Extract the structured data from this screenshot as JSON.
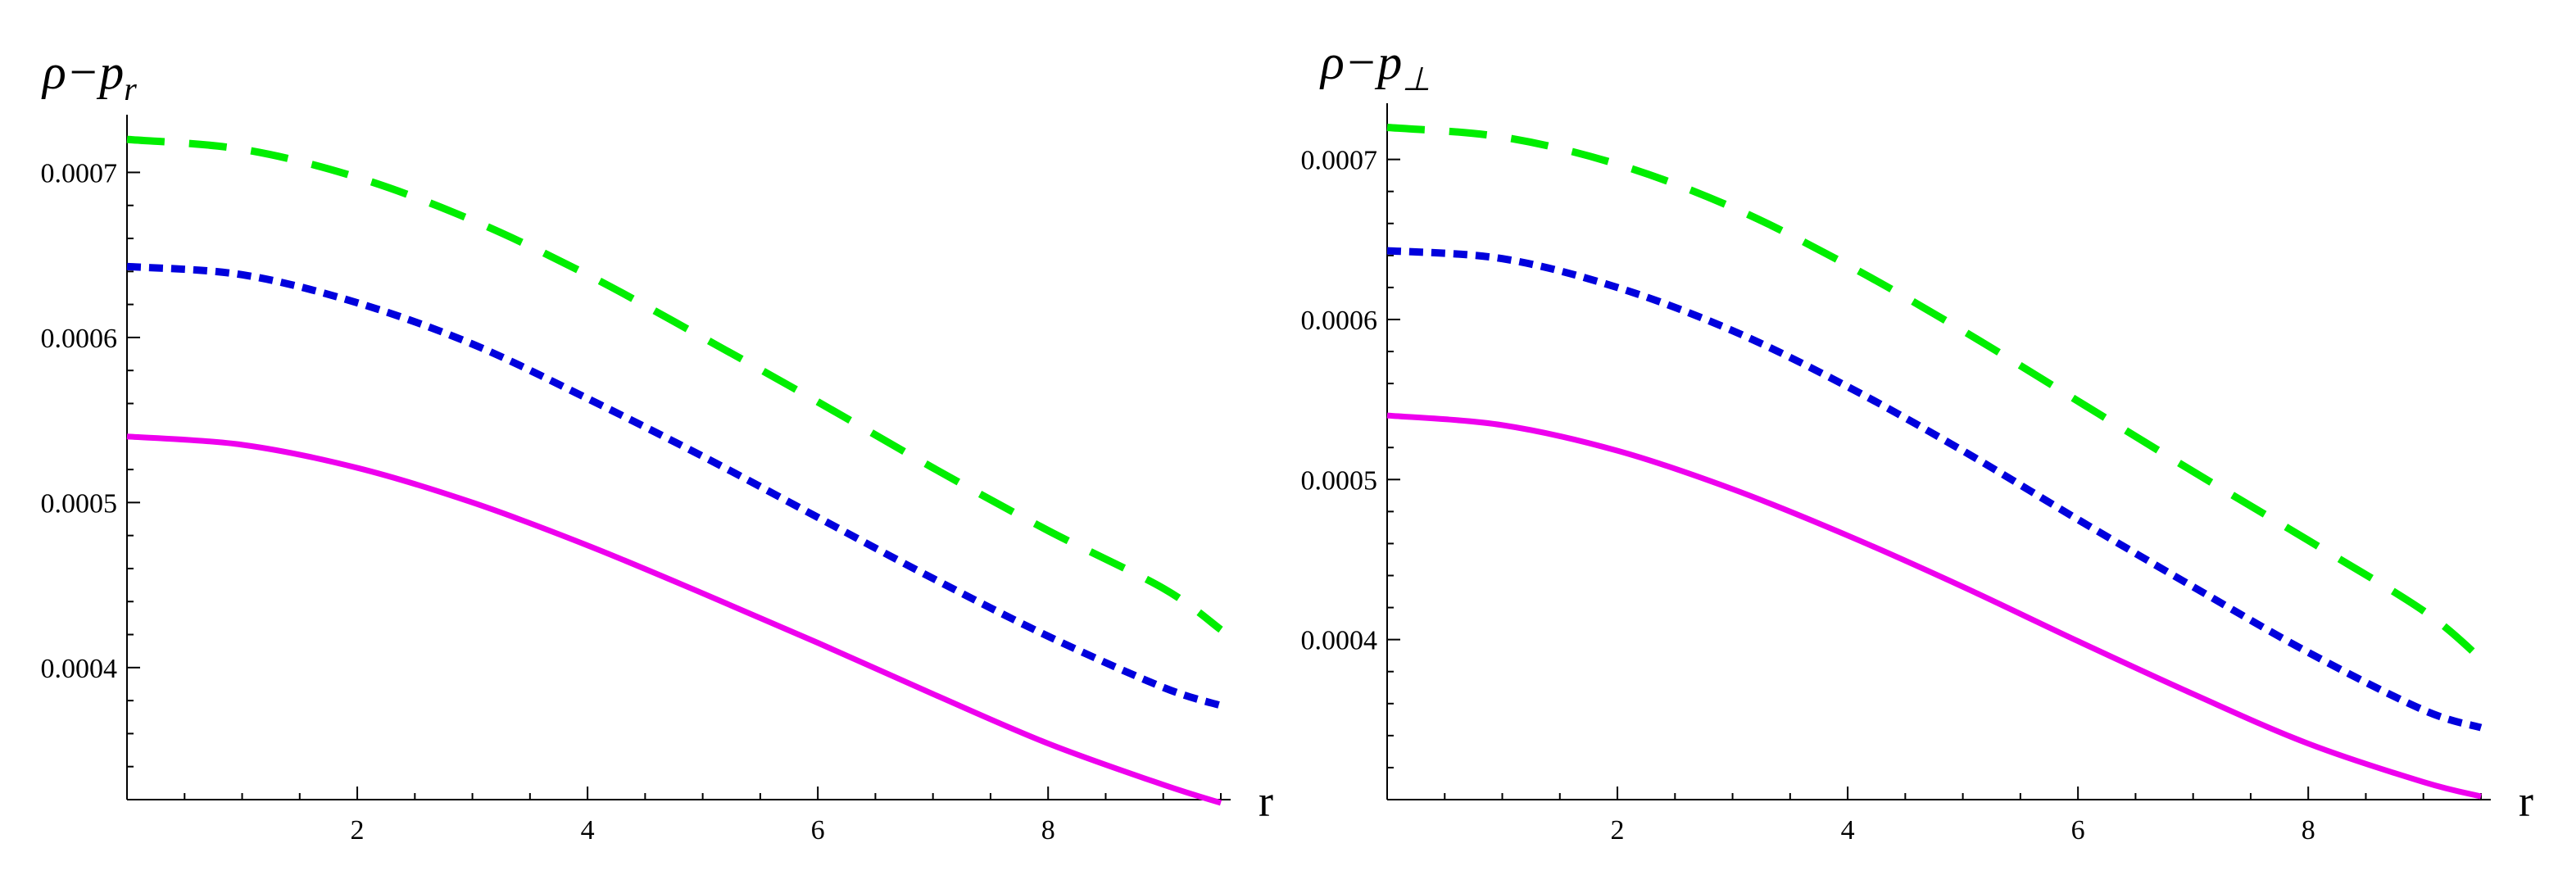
{
  "chart_data": [
    {
      "type": "line",
      "ylabel": "ρ−p",
      "ylabel_sub": "r",
      "xlabel": "r",
      "xlim": [
        0,
        9.5
      ],
      "ylim": [
        0.00032,
        0.00073
      ],
      "x_ticks": [
        2,
        4,
        6,
        8
      ],
      "x_tick_labels": [
        "2",
        "4",
        "6",
        "8"
      ],
      "y_ticks": [
        0.0004,
        0.0005,
        0.0006,
        0.0007
      ],
      "y_tick_labels": [
        "0.0004",
        "0.0005",
        "0.0006",
        "0.0007"
      ],
      "series": [
        {
          "color": "#00ee00",
          "style": "long-dashed",
          "x": [
            0,
            1,
            2,
            3,
            4,
            5,
            6,
            7,
            8,
            9,
            9.5
          ],
          "values": [
            0.00072,
            0.000714,
            0.000697,
            0.000671,
            0.000638,
            0.0006,
            0.000561,
            0.000521,
            0.000483,
            0.000448,
            0.000423
          ]
        },
        {
          "color": "#0000dd",
          "style": "short-dashed",
          "x": [
            0,
            1,
            2,
            3,
            4,
            5,
            6,
            7,
            8,
            9,
            9.5
          ],
          "values": [
            0.000643,
            0.000638,
            0.000621,
            0.000596,
            0.000563,
            0.000528,
            0.000491,
            0.000454,
            0.000419,
            0.000388,
            0.000377
          ]
        },
        {
          "color": "#ee00ee",
          "style": "solid",
          "x": [
            0,
            1,
            2,
            3,
            4,
            5,
            6,
            7,
            8,
            9,
            9.5
          ],
          "values": [
            0.00054,
            0.000535,
            0.000521,
            0.0005,
            0.000474,
            0.000445,
            0.000415,
            0.000384,
            0.000354,
            0.000329,
            0.000318
          ]
        }
      ]
    },
    {
      "type": "line",
      "ylabel": "ρ−p",
      "ylabel_sub": "⊥",
      "xlabel": "r",
      "xlim": [
        0,
        9.5
      ],
      "ylim": [
        0.0003,
        0.00073
      ],
      "x_ticks": [
        2,
        4,
        6,
        8
      ],
      "x_tick_labels": [
        "2",
        "4",
        "6",
        "8"
      ],
      "y_ticks": [
        0.0004,
        0.0005,
        0.0006,
        0.0007
      ],
      "y_tick_labels": [
        "0.0004",
        "0.0005",
        "0.0006",
        "0.0007"
      ],
      "series": [
        {
          "color": "#00ee00",
          "style": "long-dashed",
          "x": [
            0,
            1,
            2,
            3,
            4,
            5,
            6,
            7,
            8,
            9,
            9.5
          ],
          "values": [
            0.00072,
            0.000714,
            0.000697,
            0.00067,
            0.000634,
            0.000593,
            0.000549,
            0.000505,
            0.000462,
            0.000418,
            0.000388
          ]
        },
        {
          "color": "#0000dd",
          "style": "short-dashed",
          "x": [
            0,
            1,
            2,
            3,
            4,
            5,
            6,
            7,
            8,
            9,
            9.5
          ],
          "values": [
            0.000643,
            0.000638,
            0.00062,
            0.000593,
            0.000558,
            0.000518,
            0.000475,
            0.000433,
            0.000392,
            0.000356,
            0.000345
          ]
        },
        {
          "color": "#ee00ee",
          "style": "solid",
          "x": [
            0,
            1,
            2,
            3,
            4,
            5,
            6,
            7,
            8,
            9,
            9.5
          ],
          "values": [
            0.00054,
            0.000534,
            0.000518,
            0.000494,
            0.000465,
            0.000433,
            0.000399,
            0.000366,
            0.000335,
            0.000311,
            0.000302
          ]
        }
      ]
    }
  ]
}
